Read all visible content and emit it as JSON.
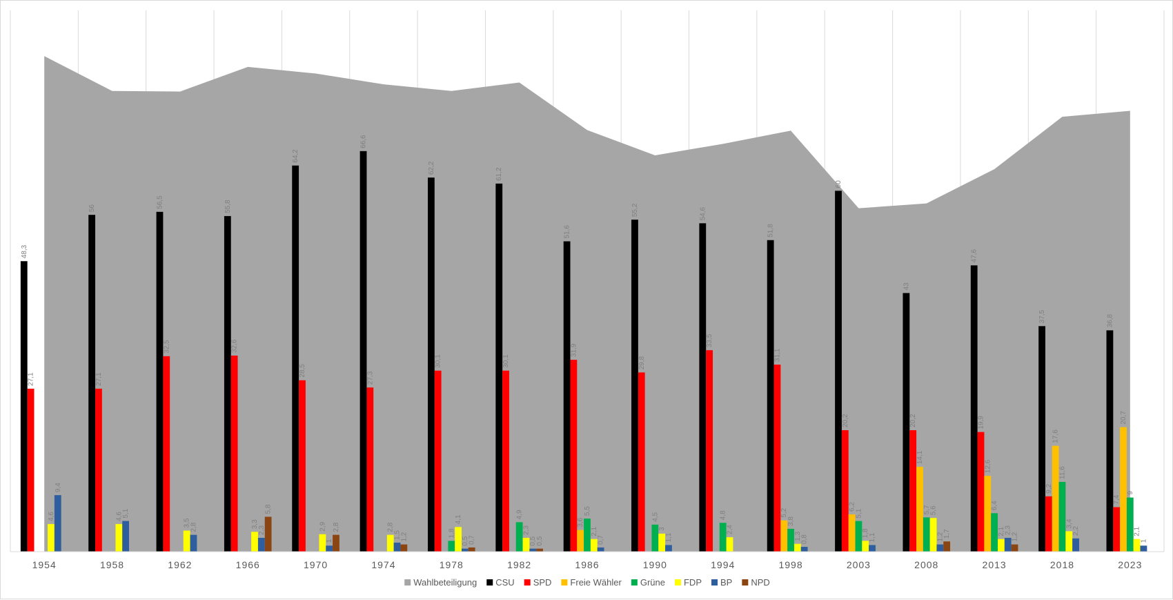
{
  "chart_data": {
    "type": "bar",
    "title": "",
    "xlabel": "",
    "ylabel": "",
    "ylim": [
      0,
      90
    ],
    "grid": "vertical",
    "legend_position": "bottom",
    "categories": [
      "1954",
      "1958",
      "1962",
      "1966",
      "1970",
      "1974",
      "1978",
      "1982",
      "1986",
      "1990",
      "1994",
      "1998",
      "2003",
      "2008",
      "2013",
      "2018",
      "2023"
    ],
    "area_series": {
      "name": "Wahlbeteiligung",
      "color": "#a6a6a6",
      "values": [
        82.4,
        76.6,
        76.5,
        80.6,
        79.5,
        77.7,
        76.6,
        78.0,
        70.1,
        65.9,
        67.8,
        70.0,
        57.1,
        57.9,
        63.6,
        72.3,
        73.3
      ]
    },
    "series": [
      {
        "name": "CSU",
        "color": "#000000",
        "values": [
          48.3,
          56,
          56.5,
          55.8,
          64.2,
          66.6,
          62.2,
          61.2,
          51.6,
          55.2,
          54.6,
          51.8,
          60,
          43,
          47.6,
          37.5,
          36.8
        ]
      },
      {
        "name": "SPD",
        "color": "#ff0000",
        "values": [
          27.1,
          27.1,
          32.5,
          32.6,
          28.5,
          27.3,
          30.1,
          30.1,
          31.9,
          29.8,
          33.5,
          31.1,
          20.2,
          20.2,
          19.9,
          9.2,
          7.4
        ]
      },
      {
        "name": "Freie Wähler",
        "color": "#ffc000",
        "values": [
          null,
          null,
          null,
          null,
          null,
          null,
          null,
          null,
          3.6,
          null,
          null,
          5.2,
          6.2,
          14.1,
          12.6,
          17.6,
          20.7
        ]
      },
      {
        "name": "Grüne",
        "color": "#00b050",
        "values": [
          null,
          null,
          null,
          null,
          null,
          null,
          1.8,
          4.9,
          5.5,
          4.5,
          4.8,
          3.8,
          5.1,
          5.7,
          6.4,
          11.6,
          9
        ]
      },
      {
        "name": "FDP",
        "color": "#ffff00",
        "values": [
          4.6,
          4.6,
          3.5,
          3.3,
          2.9,
          2.8,
          4.1,
          2.3,
          2.1,
          3,
          2.4,
          1.3,
          1.8,
          5.6,
          2.1,
          3.4,
          2.1
        ]
      },
      {
        "name": "BP",
        "color": "#2e5e9e",
        "values": [
          9.4,
          5.1,
          2.8,
          2.3,
          1,
          1.5,
          0.5,
          0.5,
          0.7,
          1.1,
          null,
          0.8,
          1.1,
          1.2,
          2.3,
          2.2,
          1
        ]
      },
      {
        "name": "NPD",
        "color": "#8b4513",
        "values": [
          null,
          null,
          null,
          5.8,
          2.8,
          1.2,
          0.7,
          0.5,
          null,
          null,
          null,
          null,
          null,
          1.7,
          1.2,
          null,
          null
        ]
      }
    ]
  }
}
